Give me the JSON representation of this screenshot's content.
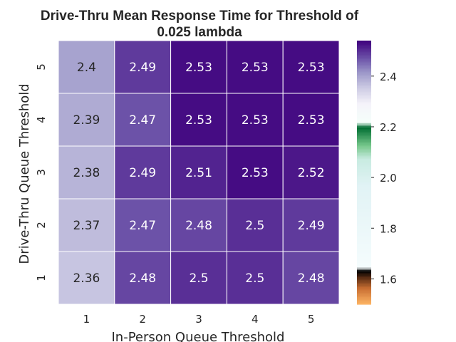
{
  "chart_data": {
    "type": "heatmap",
    "title_line1": "Drive-Thru Mean Response Time for Threshold of",
    "title_line2": "0.025 lambda",
    "xlabel": "In-Person Queue Threshold",
    "ylabel": "Drive-Thru Queue Threshold",
    "x_categories": [
      "1",
      "2",
      "3",
      "4",
      "5"
    ],
    "y_categories": [
      "5",
      "4",
      "3",
      "2",
      "1"
    ],
    "values": [
      [
        2.4,
        2.49,
        2.53,
        2.53,
        2.53
      ],
      [
        2.39,
        2.47,
        2.53,
        2.53,
        2.53
      ],
      [
        2.38,
        2.49,
        2.51,
        2.53,
        2.52
      ],
      [
        2.37,
        2.47,
        2.48,
        2.5,
        2.49
      ],
      [
        2.36,
        2.48,
        2.5,
        2.5,
        2.48
      ]
    ],
    "value_labels": [
      [
        "2.4",
        "2.49",
        "2.53",
        "2.53",
        "2.53"
      ],
      [
        "2.39",
        "2.47",
        "2.53",
        "2.53",
        "2.53"
      ],
      [
        "2.38",
        "2.49",
        "2.51",
        "2.53",
        "2.52"
      ],
      [
        "2.37",
        "2.47",
        "2.48",
        "2.5",
        "2.49"
      ],
      [
        "2.36",
        "2.48",
        "2.5",
        "2.5",
        "2.48"
      ]
    ],
    "colorbar": {
      "range": [
        1.5,
        2.54
      ],
      "ticks": [
        1.6,
        1.8,
        2.0,
        2.2,
        2.4
      ],
      "tick_labels": [
        "1.6",
        "1.8",
        "2.0",
        "2.2",
        "2.4"
      ]
    },
    "grid": false
  }
}
